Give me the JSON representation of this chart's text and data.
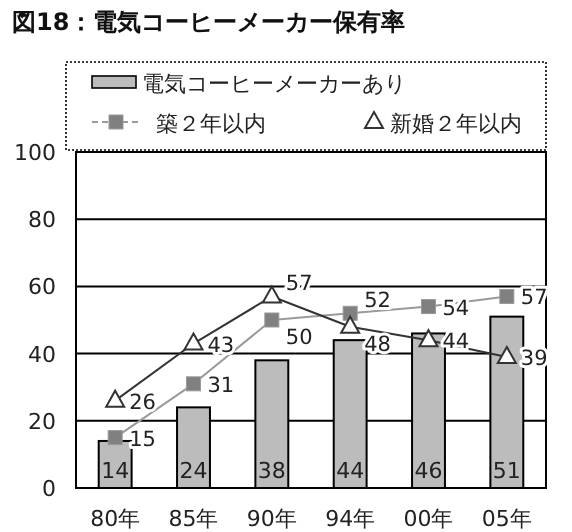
{
  "chart_data": {
    "type": "bar",
    "title": "図18：電気コーヒーメーカー保有率",
    "categories": [
      "80年",
      "85年",
      "90年",
      "94年",
      "00年",
      "05年"
    ],
    "series": [
      {
        "name": "電気コーヒーメーカーあり",
        "color": "#bcbcbc",
        "values": [
          14,
          24,
          38,
          44,
          46,
          51
        ]
      },
      {
        "name": "築２年以内",
        "type": "line",
        "color": "#9a9a9a",
        "marker": "square",
        "values": [
          15,
          31,
          50,
          52,
          54,
          57
        ]
      },
      {
        "name": "新婚２年以内",
        "type": "line",
        "color": "#333333",
        "marker": "triangle",
        "values": [
          26,
          43,
          57,
          48,
          44,
          39
        ]
      }
    ],
    "ylim": [
      0,
      100
    ],
    "yticks": [
      0,
      20,
      40,
      60,
      80,
      100
    ],
    "grid": "y",
    "legend": "top",
    "data_labels": true
  }
}
